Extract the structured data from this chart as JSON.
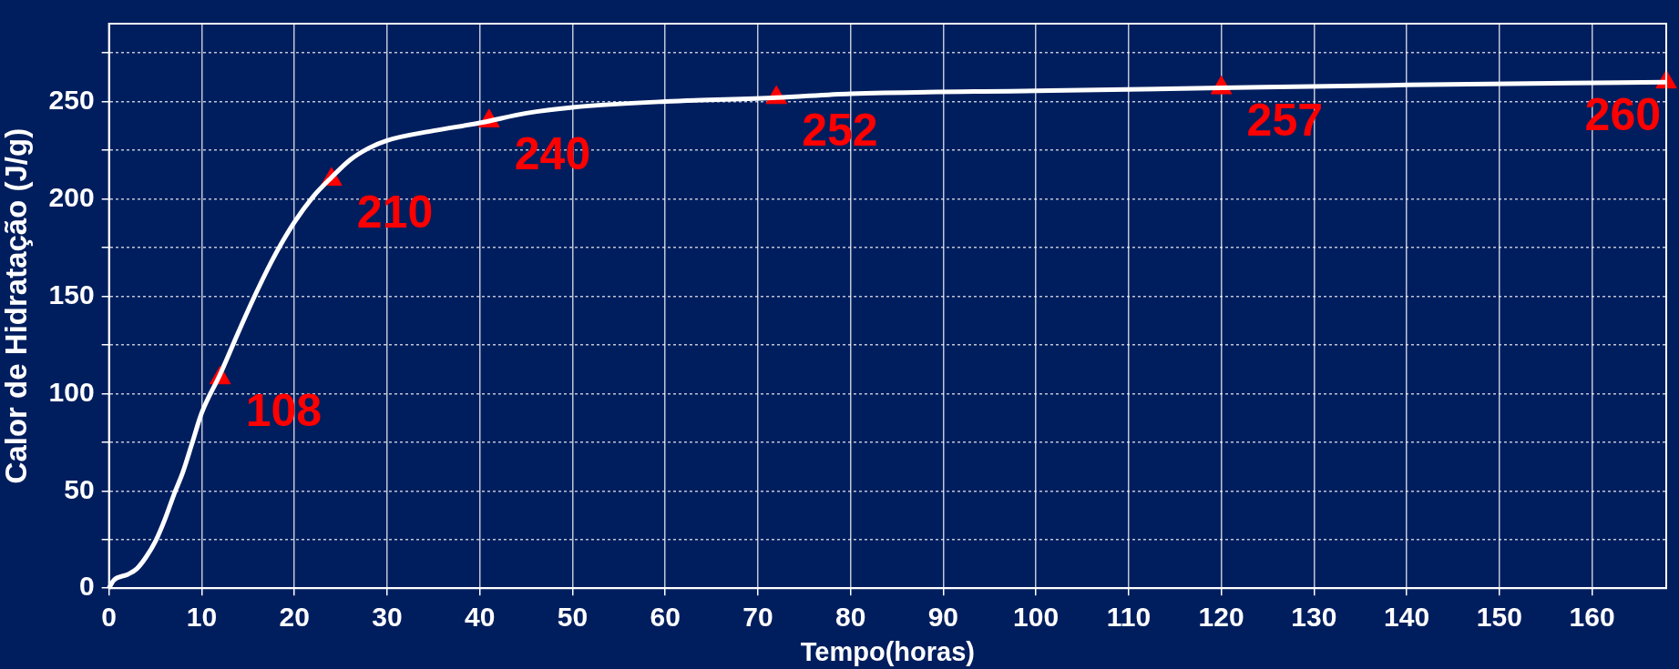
{
  "chart_data": {
    "type": "line",
    "xlabel": "Tempo(horas)",
    "ylabel": "Calor de Hidratação (J/g)",
    "xlim": [
      0,
      168
    ],
    "ylim": [
      0,
      290
    ],
    "xticks": [
      0,
      10,
      20,
      30,
      40,
      50,
      60,
      70,
      80,
      90,
      100,
      110,
      120,
      130,
      140,
      150,
      160
    ],
    "yticks": [
      0,
      {
        "value": 25,
        "label": null
      },
      50,
      {
        "value": 75,
        "label": null
      },
      100,
      {
        "value": 125,
        "label": null
      },
      150,
      {
        "value": 175,
        "label": null
      },
      200,
      {
        "value": 225,
        "label": null
      },
      250,
      {
        "value": 275,
        "label": null
      }
    ],
    "grid": true,
    "legend": false,
    "series": [
      {
        "color": "#ffffff",
        "marker": "none",
        "line_style": "solid",
        "x": [
          0,
          0.5,
          2,
          3,
          4,
          5,
          6,
          7,
          8,
          9,
          10,
          12,
          14,
          16,
          18,
          20,
          22,
          24,
          26,
          28,
          30,
          35,
          40,
          45,
          50,
          60,
          72,
          80,
          100,
          120,
          140,
          168
        ],
        "values": [
          0,
          4,
          7,
          10,
          16,
          24,
          35,
          48,
          60,
          75,
          90,
          110,
          132,
          153,
          172,
          188,
          201,
          211,
          220,
          226,
          230,
          235,
          239,
          244,
          247,
          250,
          252,
          254,
          255.5,
          257,
          258.5,
          260
        ]
      },
      {
        "type": "scatter",
        "color": "#ff0000",
        "marker": "triangle",
        "x": [
          12,
          24,
          41,
          72,
          120,
          168
        ],
        "values": [
          108,
          210,
          240,
          252,
          257,
          260
        ],
        "value_labels": [
          "108",
          "210",
          "240",
          "252",
          "257",
          "260"
        ]
      }
    ]
  }
}
